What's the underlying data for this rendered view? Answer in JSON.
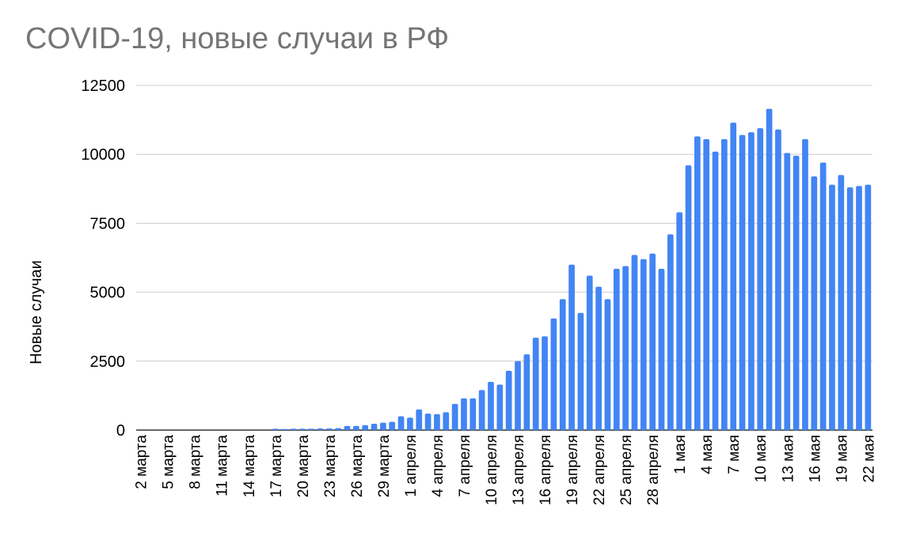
{
  "chart_data": {
    "type": "bar",
    "title": "COVID-19, новые случаи в РФ",
    "xlabel": "",
    "ylabel": "Новые случаи",
    "ylim": [
      0,
      12500
    ],
    "yticks": [
      0,
      2500,
      5000,
      7500,
      10000,
      12500
    ],
    "grid": true,
    "bar_color": "#4285f4",
    "categories": [
      "2 марта",
      "3 марта",
      "4 марта",
      "5 марта",
      "6 марта",
      "7 марта",
      "8 марта",
      "9 марта",
      "10 марта",
      "11 марта",
      "12 марта",
      "13 марта",
      "14 марта",
      "15 марта",
      "16 марта",
      "17 марта",
      "18 марта",
      "19 марта",
      "20 марта",
      "21 марта",
      "22 марта",
      "23 марта",
      "24 марта",
      "25 марта",
      "26 марта",
      "27 марта",
      "28 марта",
      "29 марта",
      "30 марта",
      "31 марта",
      "1 апреля",
      "2 апреля",
      "3 апреля",
      "4 апреля",
      "5 апреля",
      "6 апреля",
      "7 апреля",
      "8 апреля",
      "9 апреля",
      "10 апреля",
      "11 апреля",
      "12 апреля",
      "13 апреля",
      "14 апреля",
      "15 апреля",
      "16 апреля",
      "17 апреля",
      "18 апреля",
      "19 апреля",
      "20 апреля",
      "21 апреля",
      "22 апреля",
      "23 апреля",
      "24 апреля",
      "25 апреля",
      "26 апреля",
      "27 апреля",
      "28 апреля",
      "29 апреля",
      "30 апреля",
      "1 мая",
      "2 мая",
      "3 мая",
      "4 мая",
      "5 мая",
      "6 мая",
      "7 мая",
      "8 мая",
      "9 мая",
      "10 мая",
      "11 мая",
      "12 мая",
      "13 мая",
      "14 мая",
      "15 мая",
      "16 мая",
      "17 мая",
      "18 мая",
      "19 мая",
      "20 мая",
      "21 мая",
      "22 мая"
    ],
    "tick_labels": [
      "2 марта",
      "5 марта",
      "8 марта",
      "11 марта",
      "14 марта",
      "17 марта",
      "20 марта",
      "23 марта",
      "26 марта",
      "29 марта",
      "1 апреля",
      "4 апреля",
      "7 апреля",
      "10 апреля",
      "13 апреля",
      "16 апреля",
      "19 апреля",
      "22 апреля",
      "25 апреля",
      "28 апреля",
      "1 мая",
      "4 мая",
      "7 мая",
      "10 мая",
      "13 мая",
      "16 мая",
      "19 мая",
      "22 мая"
    ],
    "values": [
      0,
      0,
      0,
      0,
      0,
      0,
      0,
      0,
      0,
      0,
      0,
      0,
      0,
      0,
      0,
      50,
      40,
      50,
      50,
      50,
      60,
      60,
      70,
      150,
      150,
      180,
      230,
      270,
      300,
      500,
      450,
      750,
      600,
      580,
      650,
      950,
      1150,
      1150,
      1450,
      1750,
      1650,
      2150,
      2500,
      2750,
      3350,
      3400,
      4050,
      4750,
      6000,
      4250,
      5600,
      5200,
      4750,
      5850,
      5950,
      6350,
      6200,
      6400,
      5850,
      7100,
      7900,
      9600,
      10650,
      10550,
      10100,
      10550,
      11150,
      10700,
      10800,
      10950,
      11650,
      10900,
      10050,
      9950,
      10550,
      9200,
      9700,
      8900,
      9250,
      8800,
      8850,
      8900
    ]
  }
}
